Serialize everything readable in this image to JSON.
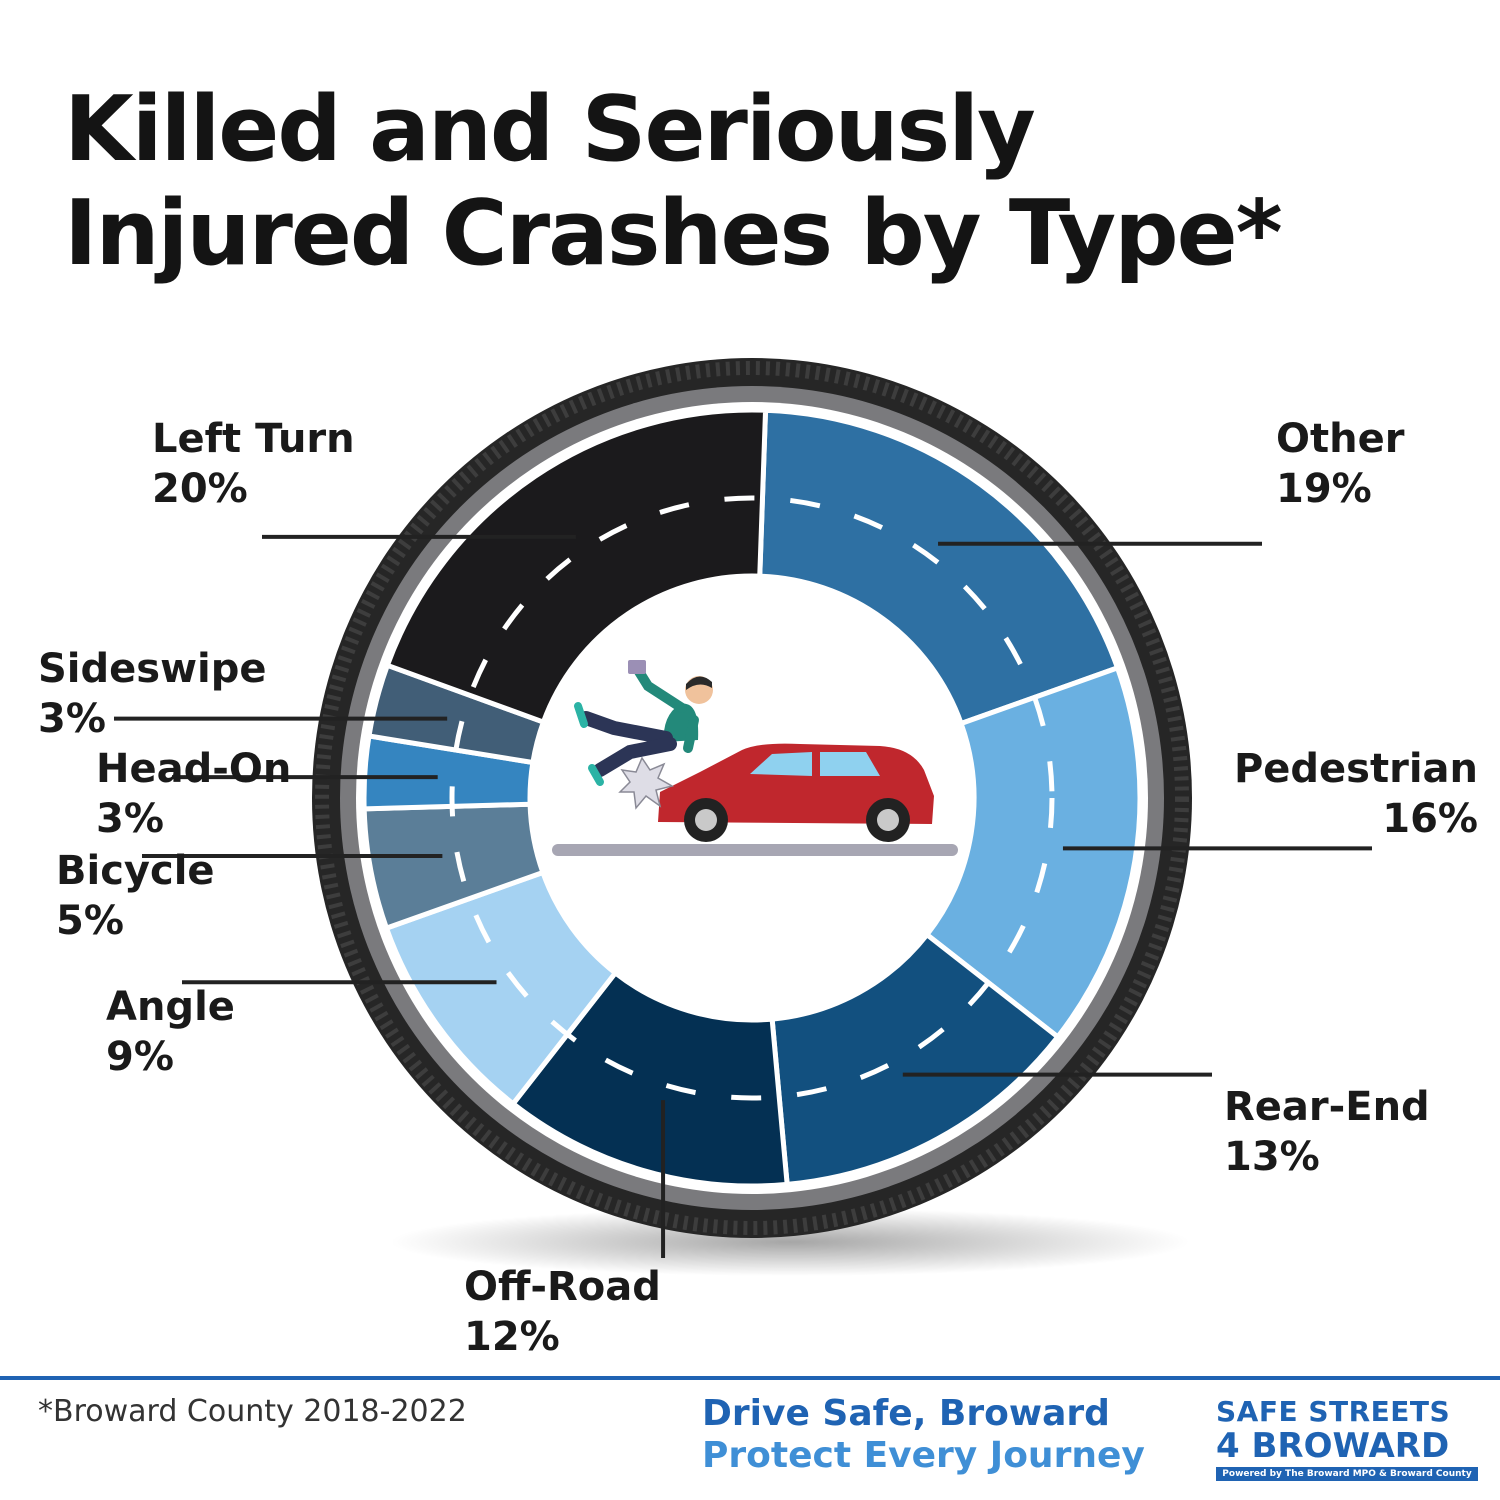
{
  "title": {
    "line1": "Killed and Seriously",
    "line2": "Injured Crashes by Type*"
  },
  "chart_data": {
    "type": "pie",
    "variant": "donut",
    "categories": [
      "Other",
      "Pedestrian",
      "Rear-End",
      "Off-Road",
      "Angle",
      "Bicycle",
      "Head-On",
      "Sideswipe",
      "Left Turn"
    ],
    "values": [
      19,
      16,
      13,
      12,
      9,
      5,
      3,
      3,
      20
    ],
    "value_labels": [
      "19%",
      "16%",
      "13%",
      "12%",
      "9%",
      "5%",
      "3%",
      "3%",
      "20%"
    ],
    "unit": "%",
    "colors": [
      "#2e70a3",
      "#6ab0e1",
      "#12507f",
      "#043053",
      "#a5d2f2",
      "#5b7e98",
      "#3585c0",
      "#415e77",
      "#1b1a1c"
    ],
    "legend": "leader-line labels around the ring"
  },
  "footnote": "*Broward County 2018-2022",
  "slogan": {
    "line1": "Drive Safe, Broward",
    "line2": "Protect Every Journey"
  },
  "logo": {
    "line1": "SAFE STREETS",
    "line2": "4 BROWARD",
    "tagline": "Powered by The Broward MPO & Broward County"
  },
  "colors": {
    "title": "#141414",
    "accent": "#1f63b3",
    "slogan_line1": "#1f63b3",
    "slogan_line2": "#3f8fd6",
    "tire": "#2b2b2b",
    "rim": "#7a7a7d",
    "leader": "#222222",
    "car": "#c0272d",
    "road": "#a7a6b3"
  },
  "icons": [
    "tire-ring-icon",
    "pedestrian-struck-by-car-icon"
  ]
}
